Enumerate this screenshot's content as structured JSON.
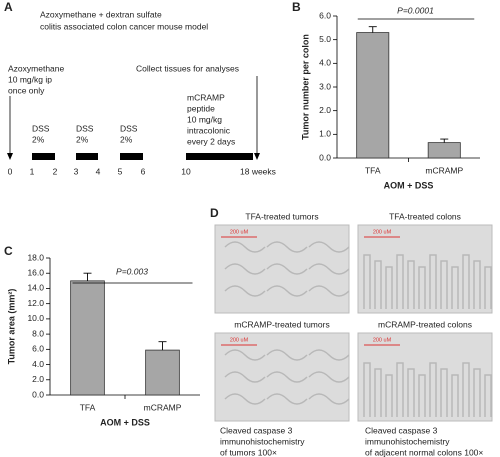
{
  "panel_a": {
    "label": "A",
    "title": [
      "Azoxymethane + dextran sulfate",
      "colitis associated colon cancer mouse model"
    ],
    "start_note": [
      "Azoxymethane",
      "10 mg/kg ip",
      "once only"
    ],
    "end_note": "Collect tissues for analyses",
    "dss": [
      [
        "DSS",
        "2%"
      ],
      [
        "DSS",
        "2%"
      ],
      [
        "DSS",
        "2%"
      ]
    ],
    "peptide_note": [
      "mCRAMP",
      "peptide",
      "10 mg/kg",
      "intracolonic",
      "every 2 days"
    ],
    "timeline": [
      "0",
      "1",
      "2",
      "3",
      "4",
      "5",
      "6",
      "10",
      "18 weeks"
    ]
  },
  "chart_data": [
    {
      "type": "bar",
      "panel": "B",
      "categories": [
        "TFA",
        "mCRAMP"
      ],
      "values": [
        5.3,
        0.65
      ],
      "errors": [
        0.25,
        0.15
      ],
      "color": "#a6a6a6",
      "xlabel": "AOM + DSS",
      "ylabel": "Tumor number per colon",
      "annotation": "P=0.0001",
      "ylim": [
        0,
        6
      ],
      "yticks": [
        {
          "value": 0,
          "label": "0.0"
        },
        {
          "value": 1,
          "label": "1.0"
        },
        {
          "value": 2,
          "label": "2.0"
        },
        {
          "value": 3,
          "label": "3.0"
        },
        {
          "value": 4,
          "label": "4.0"
        },
        {
          "value": 5,
          "label": "5.0"
        },
        {
          "value": 6,
          "label": "6.0"
        }
      ]
    },
    {
      "type": "bar",
      "panel": "C",
      "categories": [
        "TFA",
        "mCRAMP"
      ],
      "values": [
        15.0,
        5.9
      ],
      "errors": [
        1.0,
        1.1
      ],
      "color": "#a6a6a6",
      "xlabel": "AOM + DSS",
      "ylabel": "Tumor area (mm²)",
      "annotation": "P=0.003",
      "ylim": [
        0,
        18
      ],
      "yticks": [
        {
          "value": 0,
          "label": "0.0"
        },
        {
          "value": 2,
          "label": "2.0"
        },
        {
          "value": 4,
          "label": "4.0"
        },
        {
          "value": 6,
          "label": "6.0"
        },
        {
          "value": 8,
          "label": "8.0"
        },
        {
          "value": 10,
          "label": "10.0"
        },
        {
          "value": 12,
          "label": "12.0"
        },
        {
          "value": 14,
          "label": "14.0"
        },
        {
          "value": 16,
          "label": "16.0"
        },
        {
          "value": 18,
          "label": "18.0"
        }
      ]
    }
  ],
  "panel_d": {
    "label": "D",
    "images": [
      {
        "title": "TFA-treated tumors",
        "scale": "200 uM"
      },
      {
        "title": "TFA-treated colons",
        "scale": "200 uM"
      },
      {
        "title": "mCRAMP-treated tumors",
        "scale": "200 uM"
      },
      {
        "title": "mCRAMP-treated colons",
        "scale": "200 uM"
      }
    ],
    "captions": [
      [
        "Cleaved caspase 3",
        "immunohistochemistry",
        "of tumors 100×"
      ],
      [
        "Cleaved caspase 3",
        "immunohistochemistry",
        "of adjacent normal colons 100×"
      ]
    ]
  }
}
